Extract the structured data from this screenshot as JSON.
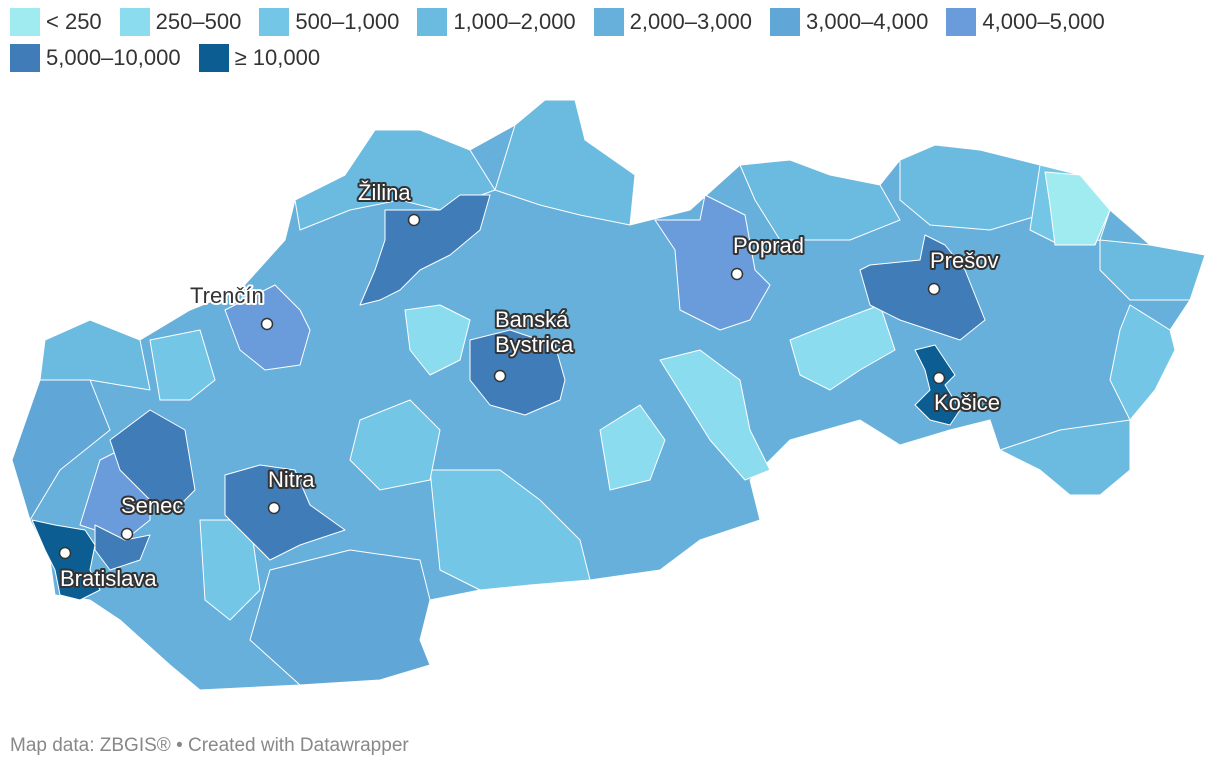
{
  "legend": [
    {
      "label": "< 250",
      "color": "#a0ebf0"
    },
    {
      "label": "250–500",
      "color": "#8bdcee"
    },
    {
      "label": "500–1,000",
      "color": "#73c6e6"
    },
    {
      "label": "1,000–2,000",
      "color": "#6bbae0"
    },
    {
      "label": "2,000–3,000",
      "color": "#66b0db"
    },
    {
      "label": "3,000–4,000",
      "color": "#60a6d7"
    },
    {
      "label": "4,000–5,000",
      "color": "#6a9cdc"
    },
    {
      "label": "5,000–10,000",
      "color": "#3f7cb8"
    },
    {
      "label": "≥ 10,000",
      "color": "#0c5e92"
    }
  ],
  "cities": [
    "Žilina",
    "Poprad",
    "Prešov",
    "Trenčín",
    "Banská Bystrica",
    "Košice",
    "Nitra",
    "Senec",
    "Bratislava"
  ],
  "footer": "Map data: ZBGIS® • Created with Datawrapper"
}
